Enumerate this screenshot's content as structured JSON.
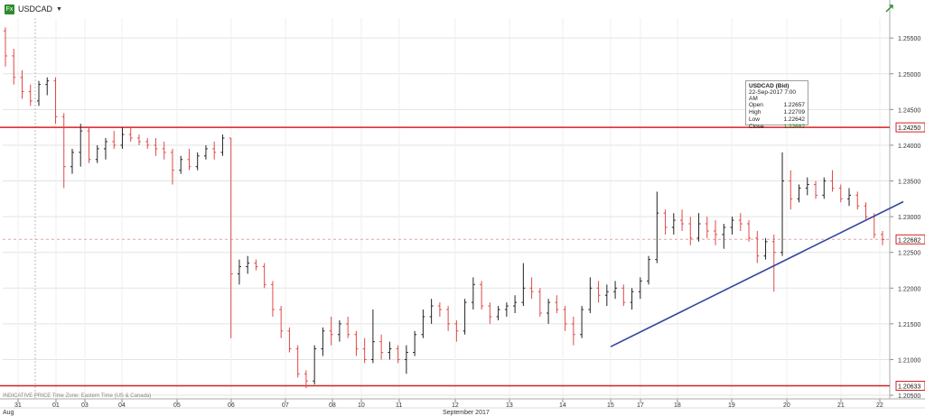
{
  "header": {
    "symbol": "USDCAD",
    "symbol_icon": "instrument-icon",
    "dropdown_icon": "chevron-down-icon",
    "corner_icon": "trend-arrow-icon"
  },
  "footnote": "INDICATIVE PRICE  Time Zone: Eastern Time (US & Canada)",
  "tooltip": {
    "title": "USDCAD (Bid)",
    "datetime": "22-Sep-2017 7:00 AM",
    "rows": [
      {
        "label": "Open",
        "value": "1.22657"
      },
      {
        "label": "High",
        "value": "1.22709"
      },
      {
        "label": "Low",
        "value": "1.22642"
      },
      {
        "label": "Close",
        "value": "1.22682"
      }
    ]
  },
  "chart_data": {
    "type": "ohlc",
    "ylim": [
      1.2045,
      1.2578
    ],
    "y_ticks": [
      1.255,
      1.25,
      1.245,
      1.24,
      1.235,
      1.23,
      1.225,
      1.22,
      1.215,
      1.21,
      1.205
    ],
    "y_tick_labels": [
      "1.25500",
      "1.25000",
      "1.24500",
      "1.24000",
      "1.23500",
      "1.23000",
      "1.22500",
      "1.22000",
      "1.21500",
      "1.21000",
      "1.20500"
    ],
    "x_day_labels": [
      "31",
      "01",
      "03",
      "04",
      "05",
      "06",
      "07",
      "08",
      "10",
      "11",
      "12",
      "13",
      "14",
      "15",
      "17",
      "18",
      "19",
      "20",
      "21",
      "22"
    ],
    "x_month_labels": [
      "Aug",
      "September 2017"
    ],
    "price_labels": [
      {
        "value": "1.24250",
        "y": 1.2425
      },
      {
        "value": "1.22682",
        "y": 1.22682
      },
      {
        "value": "1.20633",
        "y": 1.20633
      }
    ],
    "horizontal_lines": [
      {
        "y": 1.2425,
        "color": "#d62020"
      },
      {
        "y": 1.20633,
        "color": "#d62020"
      }
    ],
    "trendline": {
      "from": [
        1.2118
      ],
      "to": [
        1.2321
      ],
      "color": "#3546a0"
    },
    "current_price_line": {
      "y": 1.22682,
      "color": "#e8a0a0"
    },
    "candles": [
      [
        1.256,
        1.2565,
        1.251,
        1.2525
      ],
      [
        1.2525,
        1.2535,
        1.2485,
        1.2495
      ],
      [
        1.2495,
        1.2505,
        1.2465,
        1.2475
      ],
      [
        1.2475,
        1.2485,
        1.2455,
        1.2462
      ],
      [
        1.2462,
        1.249,
        1.2455,
        1.2485
      ],
      [
        1.2485,
        1.2495,
        1.247,
        1.249
      ],
      [
        1.249,
        1.2495,
        1.243,
        1.244
      ],
      [
        1.244,
        1.2445,
        1.234,
        1.237
      ],
      [
        1.237,
        1.2395,
        1.236,
        1.239
      ],
      [
        1.239,
        1.243,
        1.237,
        1.242
      ],
      [
        1.242,
        1.2425,
        1.2375,
        1.238
      ],
      [
        1.238,
        1.24,
        1.2375,
        1.2395
      ],
      [
        1.2395,
        1.241,
        1.238,
        1.2405
      ],
      [
        1.2405,
        1.242,
        1.2395,
        1.24
      ],
      [
        1.24,
        1.2425,
        1.2395,
        1.2415
      ],
      [
        1.2415,
        1.2425,
        1.2405,
        1.241
      ],
      [
        1.241,
        1.2415,
        1.24,
        1.2405
      ],
      [
        1.2405,
        1.241,
        1.2395,
        1.24
      ],
      [
        1.24,
        1.241,
        1.2385,
        1.2395
      ],
      [
        1.2395,
        1.2405,
        1.238,
        1.239
      ],
      [
        1.239,
        1.2395,
        1.2345,
        1.2365
      ],
      [
        1.2365,
        1.2385,
        1.236,
        1.238
      ],
      [
        1.238,
        1.2395,
        1.2365,
        1.237
      ],
      [
        1.237,
        1.239,
        1.2365,
        1.2385
      ],
      [
        1.2385,
        1.24,
        1.238,
        1.2395
      ],
      [
        1.2395,
        1.2405,
        1.238,
        1.239
      ],
      [
        1.239,
        1.2415,
        1.2385,
        1.241
      ],
      [
        1.241,
        1.241,
        1.213,
        1.222
      ],
      [
        1.222,
        1.224,
        1.2205,
        1.223
      ],
      [
        1.223,
        1.2245,
        1.222,
        1.2235
      ],
      [
        1.2235,
        1.224,
        1.2225,
        1.223
      ],
      [
        1.223,
        1.2235,
        1.22,
        1.2205
      ],
      [
        1.2205,
        1.221,
        1.216,
        1.217
      ],
      [
        1.217,
        1.2175,
        1.213,
        1.214
      ],
      [
        1.214,
        1.2145,
        1.211,
        1.2115
      ],
      [
        1.2115,
        1.212,
        1.2075,
        1.208
      ],
      [
        1.208,
        1.2085,
        1.206,
        1.207
      ],
      [
        1.207,
        1.212,
        1.2065,
        1.2115
      ],
      [
        1.2115,
        1.2145,
        1.2105,
        1.214
      ],
      [
        1.214,
        1.216,
        1.212,
        1.2135
      ],
      [
        1.2135,
        1.2155,
        1.2125,
        1.215
      ],
      [
        1.215,
        1.216,
        1.213,
        1.2135
      ],
      [
        1.2135,
        1.214,
        1.2105,
        1.2115
      ],
      [
        1.2115,
        1.213,
        1.2095,
        1.21
      ],
      [
        1.21,
        1.217,
        1.2095,
        1.2125
      ],
      [
        1.2125,
        1.2135,
        1.21,
        1.211
      ],
      [
        1.211,
        1.2125,
        1.21,
        1.2115
      ],
      [
        1.2115,
        1.212,
        1.2095,
        1.21
      ],
      [
        1.21,
        1.212,
        1.208,
        1.211
      ],
      [
        1.211,
        1.214,
        1.2105,
        1.2135
      ],
      [
        1.2135,
        1.217,
        1.213,
        1.216
      ],
      [
        1.216,
        1.2185,
        1.215,
        1.2175
      ],
      [
        1.2175,
        1.218,
        1.216,
        1.217
      ],
      [
        1.217,
        1.2175,
        1.214,
        1.215
      ],
      [
        1.215,
        1.2155,
        1.2125,
        1.214
      ],
      [
        1.214,
        1.2185,
        1.2135,
        1.218
      ],
      [
        1.218,
        1.2215,
        1.217,
        1.2205
      ],
      [
        1.2205,
        1.221,
        1.217,
        1.2175
      ],
      [
        1.2175,
        1.218,
        1.215,
        1.216
      ],
      [
        1.216,
        1.2175,
        1.2155,
        1.217
      ],
      [
        1.217,
        1.218,
        1.216,
        1.2175
      ],
      [
        1.2175,
        1.219,
        1.2165,
        1.218
      ],
      [
        1.218,
        1.2235,
        1.2175,
        1.22
      ],
      [
        1.22,
        1.2215,
        1.2185,
        1.2195
      ],
      [
        1.2195,
        1.22,
        1.216,
        1.2165
      ],
      [
        1.2165,
        1.2185,
        1.215,
        1.218
      ],
      [
        1.218,
        1.219,
        1.2165,
        1.217
      ],
      [
        1.217,
        1.2175,
        1.214,
        1.215
      ],
      [
        1.215,
        1.216,
        1.212,
        1.2135
      ],
      [
        1.2135,
        1.2175,
        1.213,
        1.217
      ],
      [
        1.217,
        1.2215,
        1.2165,
        1.22
      ],
      [
        1.22,
        1.221,
        1.218,
        1.219
      ],
      [
        1.219,
        1.2205,
        1.2175,
        1.2195
      ],
      [
        1.2195,
        1.221,
        1.2185,
        1.22
      ],
      [
        1.22,
        1.2205,
        1.2175,
        1.218
      ],
      [
        1.218,
        1.22,
        1.217,
        1.2195
      ],
      [
        1.2195,
        1.2215,
        1.2185,
        1.221
      ],
      [
        1.221,
        1.2245,
        1.2205,
        1.224
      ],
      [
        1.224,
        1.2335,
        1.2235,
        1.2305
      ],
      [
        1.2305,
        1.231,
        1.2275,
        1.2285
      ],
      [
        1.2285,
        1.2305,
        1.2275,
        1.2295
      ],
      [
        1.2295,
        1.231,
        1.228,
        1.229
      ],
      [
        1.229,
        1.23,
        1.226,
        1.227
      ],
      [
        1.227,
        1.2305,
        1.2265,
        1.229
      ],
      [
        1.229,
        1.23,
        1.227,
        1.228
      ],
      [
        1.228,
        1.2295,
        1.226,
        1.2275
      ],
      [
        1.2275,
        1.229,
        1.2255,
        1.2285
      ],
      [
        1.2285,
        1.23,
        1.2275,
        1.2295
      ],
      [
        1.2295,
        1.2305,
        1.228,
        1.229
      ],
      [
        1.229,
        1.2295,
        1.2265,
        1.227
      ],
      [
        1.227,
        1.228,
        1.2235,
        1.2245
      ],
      [
        1.2245,
        1.227,
        1.224,
        1.2265
      ],
      [
        1.2265,
        1.2275,
        1.2195,
        1.225
      ],
      [
        1.225,
        1.239,
        1.2245,
        1.235
      ],
      [
        1.235,
        1.2365,
        1.231,
        1.2325
      ],
      [
        1.2325,
        1.2345,
        1.232,
        1.234
      ],
      [
        1.234,
        1.2355,
        1.233,
        1.2345
      ],
      [
        1.2345,
        1.235,
        1.2325,
        1.233
      ],
      [
        1.233,
        1.2355,
        1.2325,
        1.235
      ],
      [
        1.235,
        1.2365,
        1.2335,
        1.234
      ],
      [
        1.234,
        1.2345,
        1.232,
        1.2325
      ],
      [
        1.2325,
        1.234,
        1.2315,
        1.233
      ],
      [
        1.233,
        1.2335,
        1.231,
        1.2315
      ],
      [
        1.2315,
        1.232,
        1.2295,
        1.23
      ],
      [
        1.23,
        1.2305,
        1.227,
        1.2275
      ],
      [
        1.2275,
        1.228,
        1.226,
        1.2268
      ]
    ]
  }
}
